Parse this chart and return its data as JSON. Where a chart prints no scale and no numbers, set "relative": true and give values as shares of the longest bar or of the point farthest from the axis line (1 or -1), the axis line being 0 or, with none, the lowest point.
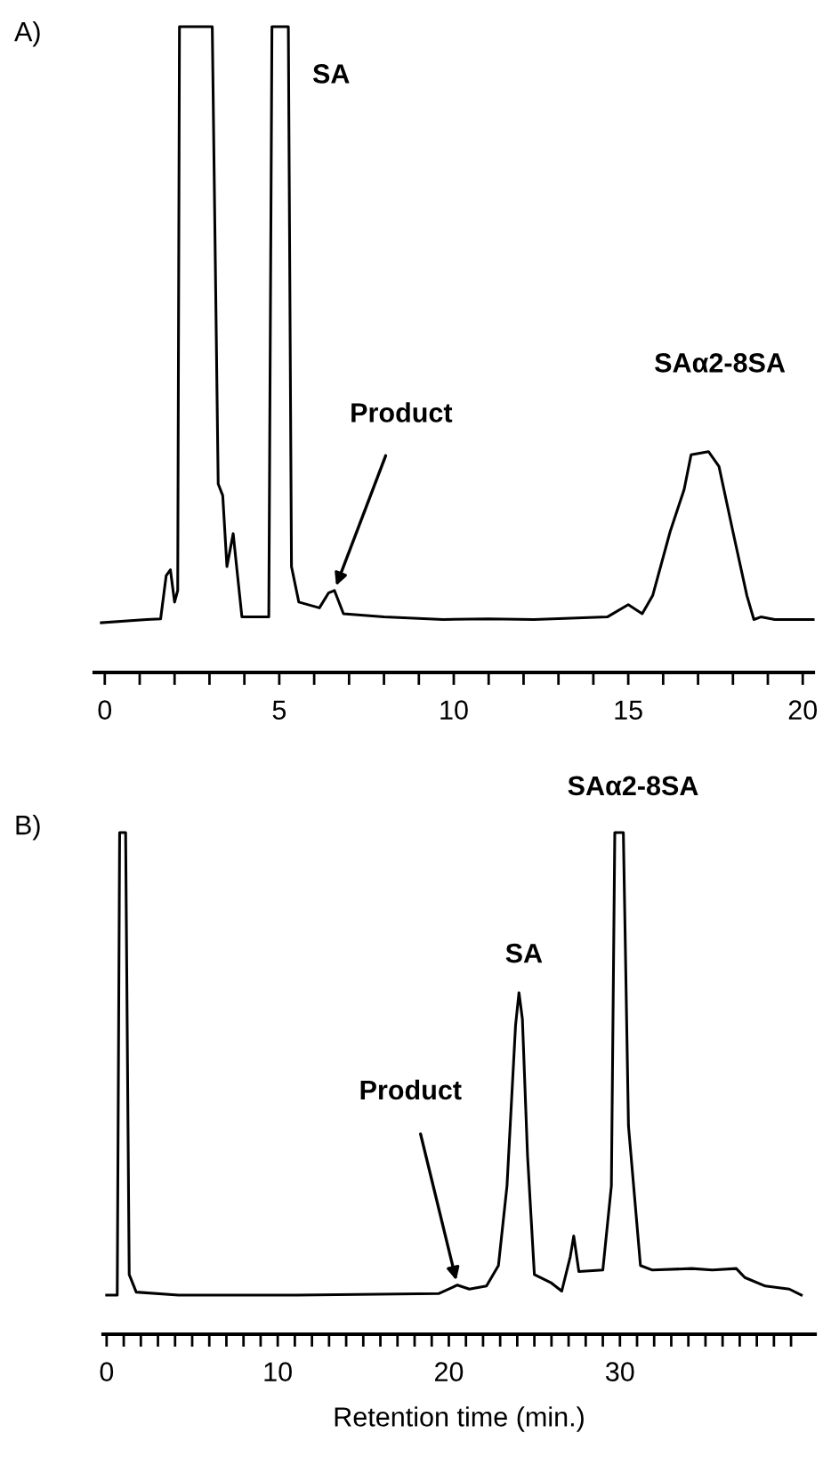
{
  "chart_data": [
    {
      "type": "line",
      "relative": true,
      "xlim": [
        -0.3,
        20.3
      ],
      "xticks": [
        0,
        {
          "value": 1,
          "label": null
        },
        {
          "value": 2,
          "label": null
        },
        {
          "value": 3,
          "label": null
        },
        {
          "value": 4,
          "label": null
        },
        5,
        {
          "value": 6,
          "label": null
        },
        {
          "value": 7,
          "label": null
        },
        {
          "value": 8,
          "label": null
        },
        {
          "value": 9,
          "label": null
        },
        10,
        {
          "value": 11,
          "label": null
        },
        {
          "value": 12,
          "label": null
        },
        {
          "value": 13,
          "label": null
        },
        {
          "value": 14,
          "label": null
        },
        15,
        {
          "value": 16,
          "label": null
        },
        {
          "value": 17,
          "label": null
        },
        {
          "value": 18,
          "label": null
        },
        {
          "value": 19,
          "label": null
        },
        20
      ],
      "tick_labels": "x",
      "grid": false,
      "legend": false,
      "series": [
        {
          "color": "#000000",
          "x": [
            -0.1,
            1.2,
            1.6,
            1.76,
            1.88,
            2.0,
            2.09,
            2.14,
            3.08,
            3.25,
            3.38,
            3.5,
            3.68,
            3.76,
            3.93,
            4.7,
            4.79,
            5.26,
            5.35,
            5.56,
            6.15,
            6.41,
            6.58,
            6.84,
            8.0,
            9.7,
            11.0,
            12.3,
            14.4,
            15.0,
            15.4,
            15.7,
            16.2,
            16.6,
            16.8,
            17.3,
            17.6,
            18.0,
            18.4,
            18.6,
            18.8,
            19.2,
            20.3
          ],
          "values": [
            0.077,
            0.082,
            0.083,
            0.15,
            0.159,
            0.109,
            0.127,
            1,
            1,
            0.292,
            0.274,
            0.164,
            0.215,
            0.173,
            0.086,
            0.086,
            1,
            1,
            0.164,
            0.109,
            0.1,
            0.123,
            0.127,
            0.091,
            0.086,
            0.082,
            0.083,
            0.082,
            0.086,
            0.105,
            0.091,
            0.119,
            0.218,
            0.283,
            0.337,
            0.342,
            0.319,
            0.218,
            0.119,
            0.082,
            0.086,
            0.082,
            0.082
          ]
        }
      ],
      "annotations": [
        "A)",
        {
          "text": "SA",
          "x": 5.0,
          "y": 1
        },
        {
          "text": "Product",
          "x": 6.58,
          "y": 0.127
        },
        {
          "text": "SAα2-8SA",
          "x": 17.2,
          "y": 0.342
        }
      ]
    },
    {
      "type": "line",
      "relative": true,
      "xlim": [
        -0.2,
        41.4
      ],
      "xticks": [
        0,
        {
          "value": 1,
          "label": null
        },
        {
          "value": 2,
          "label": null
        },
        {
          "value": 3,
          "label": null
        },
        {
          "value": 4,
          "label": null
        },
        {
          "value": 5,
          "label": null
        },
        {
          "value": 6,
          "label": null
        },
        {
          "value": 7,
          "label": null
        },
        {
          "value": 8,
          "label": null
        },
        {
          "value": 9,
          "label": null
        },
        10,
        {
          "value": 11,
          "label": null
        },
        {
          "value": 12,
          "label": null
        },
        {
          "value": 13,
          "label": null
        },
        {
          "value": 14,
          "label": null
        },
        {
          "value": 15,
          "label": null
        },
        {
          "value": 16,
          "label": null
        },
        {
          "value": 17,
          "label": null
        },
        {
          "value": 18,
          "label": null
        },
        {
          "value": 19,
          "label": null
        },
        20,
        {
          "value": 21,
          "label": null
        },
        {
          "value": 22,
          "label": null
        },
        {
          "value": 23,
          "label": null
        },
        {
          "value": 24,
          "label": null
        },
        {
          "value": 25,
          "label": null
        },
        {
          "value": 26,
          "label": null
        },
        {
          "value": 27,
          "label": null
        },
        {
          "value": 28,
          "label": null
        },
        {
          "value": 29,
          "label": null
        },
        30,
        {
          "value": 31,
          "label": null
        },
        {
          "value": 32,
          "label": null
        },
        {
          "value": 33,
          "label": null
        },
        {
          "value": 34,
          "label": null
        },
        {
          "value": 35,
          "label": null
        },
        {
          "value": 36,
          "label": null
        },
        {
          "value": 37,
          "label": null
        },
        {
          "value": 38,
          "label": null
        },
        {
          "value": 39,
          "label": null
        },
        {
          "value": 40,
          "label": null
        }
      ],
      "tick_labels": "x",
      "grid": false,
      "legend": false,
      "xlabel": "Retention time (min.)",
      "series": [
        {
          "color": "#000000",
          "x": [
            0,
            0.62,
            0.76,
            1.11,
            1.32,
            1.73,
            4.2,
            11.1,
            19.4,
            20.5,
            21.2,
            22.2,
            22.9,
            23.4,
            23.9,
            24.1,
            24.3,
            24.6,
            25.0,
            26.0,
            26.6,
            27.1,
            27.3,
            27.6,
            29.0,
            29.5,
            29.7,
            30.2,
            30.5,
            31.2,
            31.9,
            34.2,
            35.4,
            36.8,
            37.3,
            38.5,
            39.9,
            40.6
          ],
          "values": [
            0.078,
            0.078,
            1,
            1,
            0.119,
            0.084,
            0.078,
            0.078,
            0.081,
            0.098,
            0.09,
            0.096,
            0.137,
            0.296,
            0.616,
            0.681,
            0.628,
            0.356,
            0.119,
            0.102,
            0.086,
            0.155,
            0.196,
            0.125,
            0.128,
            0.296,
            1,
            1,
            0.415,
            0.137,
            0.128,
            0.131,
            0.128,
            0.131,
            0.113,
            0.096,
            0.09,
            0.078
          ]
        }
      ],
      "annotations": [
        "B)",
        {
          "text": "SA",
          "x": 24.1,
          "y": 0.681
        },
        {
          "text": "SAα2-8SA",
          "x": 29.9,
          "y": 1
        },
        {
          "text": "Product",
          "x": 20.5,
          "y": 0.098
        }
      ]
    }
  ]
}
